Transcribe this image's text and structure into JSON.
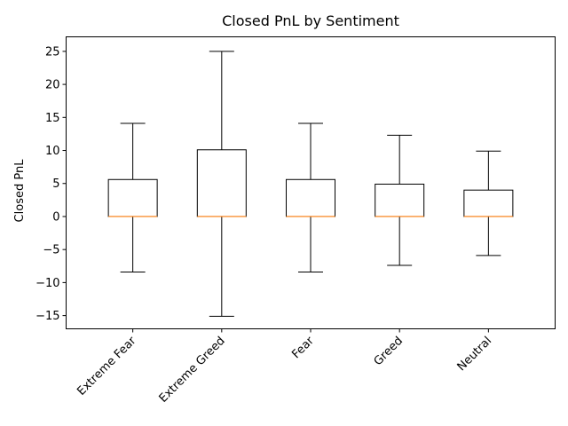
{
  "chart_data": {
    "type": "boxplot",
    "title": "Closed PnL by Sentiment",
    "xlabel": "",
    "ylabel": "Closed PnL",
    "ylim": [
      -17,
      27.2
    ],
    "yticks": [
      -15,
      -10,
      -5,
      0,
      5,
      10,
      15,
      20,
      25
    ],
    "grid": false,
    "categories": [
      "Extreme Fear",
      "Extreme Greed",
      "Fear",
      "Greed",
      "Neutral"
    ],
    "boxes": [
      {
        "category": "Extreme Fear",
        "whisker_low": -8.4,
        "q1": 0,
        "median": 0,
        "q3": 5.6,
        "whisker_high": 14.1
      },
      {
        "category": "Extreme Greed",
        "whisker_low": -15.1,
        "q1": 0,
        "median": 0,
        "q3": 10.1,
        "whisker_high": 25.0
      },
      {
        "category": "Fear",
        "whisker_low": -8.4,
        "q1": 0,
        "median": 0,
        "q3": 5.6,
        "whisker_high": 14.1
      },
      {
        "category": "Greed",
        "whisker_low": -7.4,
        "q1": 0,
        "median": 0,
        "q3": 4.9,
        "whisker_high": 12.3
      },
      {
        "category": "Neutral",
        "whisker_low": -5.9,
        "q1": 0,
        "median": 0,
        "q3": 4.0,
        "whisker_high": 9.9
      }
    ],
    "colors": {
      "box": "#000000",
      "median": "#ff7f0e",
      "background": "#ffffff"
    }
  }
}
